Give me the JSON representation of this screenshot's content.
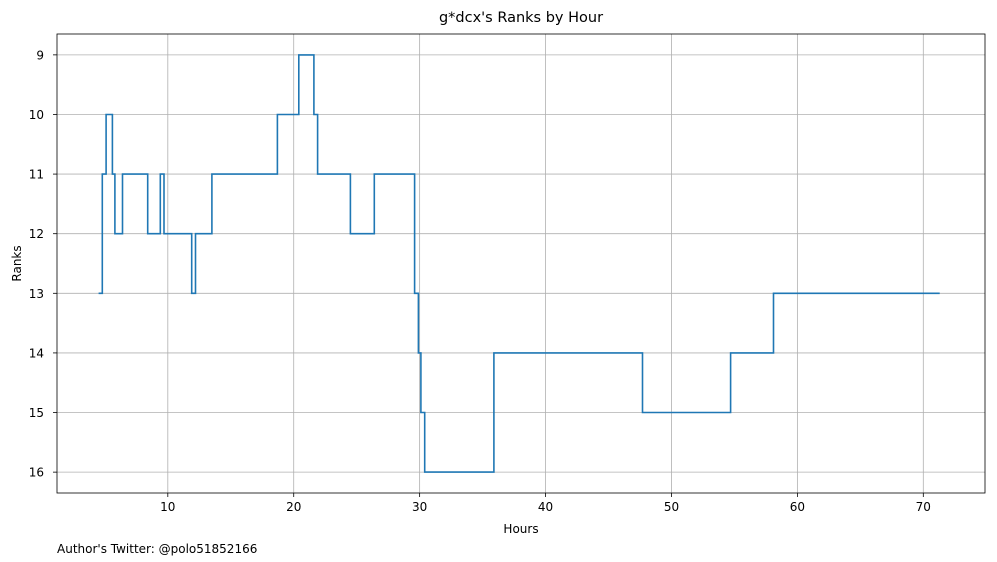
{
  "chart_data": {
    "type": "line",
    "step": true,
    "title": "g*dcx's Ranks by Hour",
    "xlabel": "Hours",
    "ylabel": "Ranks",
    "xlim": [
      1.2,
      74.9
    ],
    "ylim": [
      16.35,
      8.65
    ],
    "y_inverted": true,
    "xticks": [
      10,
      20,
      30,
      40,
      50,
      60,
      70
    ],
    "yticks": [
      9,
      10,
      11,
      12,
      13,
      14,
      15,
      16
    ],
    "grid": true,
    "color": "#1f77b4",
    "series": [
      {
        "x": [
          4.5,
          4.8,
          5.1,
          5.6,
          5.8,
          6.4,
          8.4,
          9.4,
          9.7,
          11.9,
          12.2,
          13.5,
          18.7,
          20.4,
          21.6,
          21.9,
          24.5,
          26.4,
          29.6,
          29.9,
          30.1,
          30.4,
          35.9,
          47.7,
          54.7,
          58.1,
          71.3
        ],
        "y": [
          13,
          11,
          10,
          11,
          12,
          11,
          12,
          11,
          12,
          13,
          12,
          11,
          10,
          9,
          10,
          11,
          12,
          11,
          13,
          14,
          15,
          16,
          14,
          15,
          14,
          13,
          13
        ]
      }
    ]
  },
  "footer": {
    "author_text": "Author's Twitter: @polo51852166"
  }
}
